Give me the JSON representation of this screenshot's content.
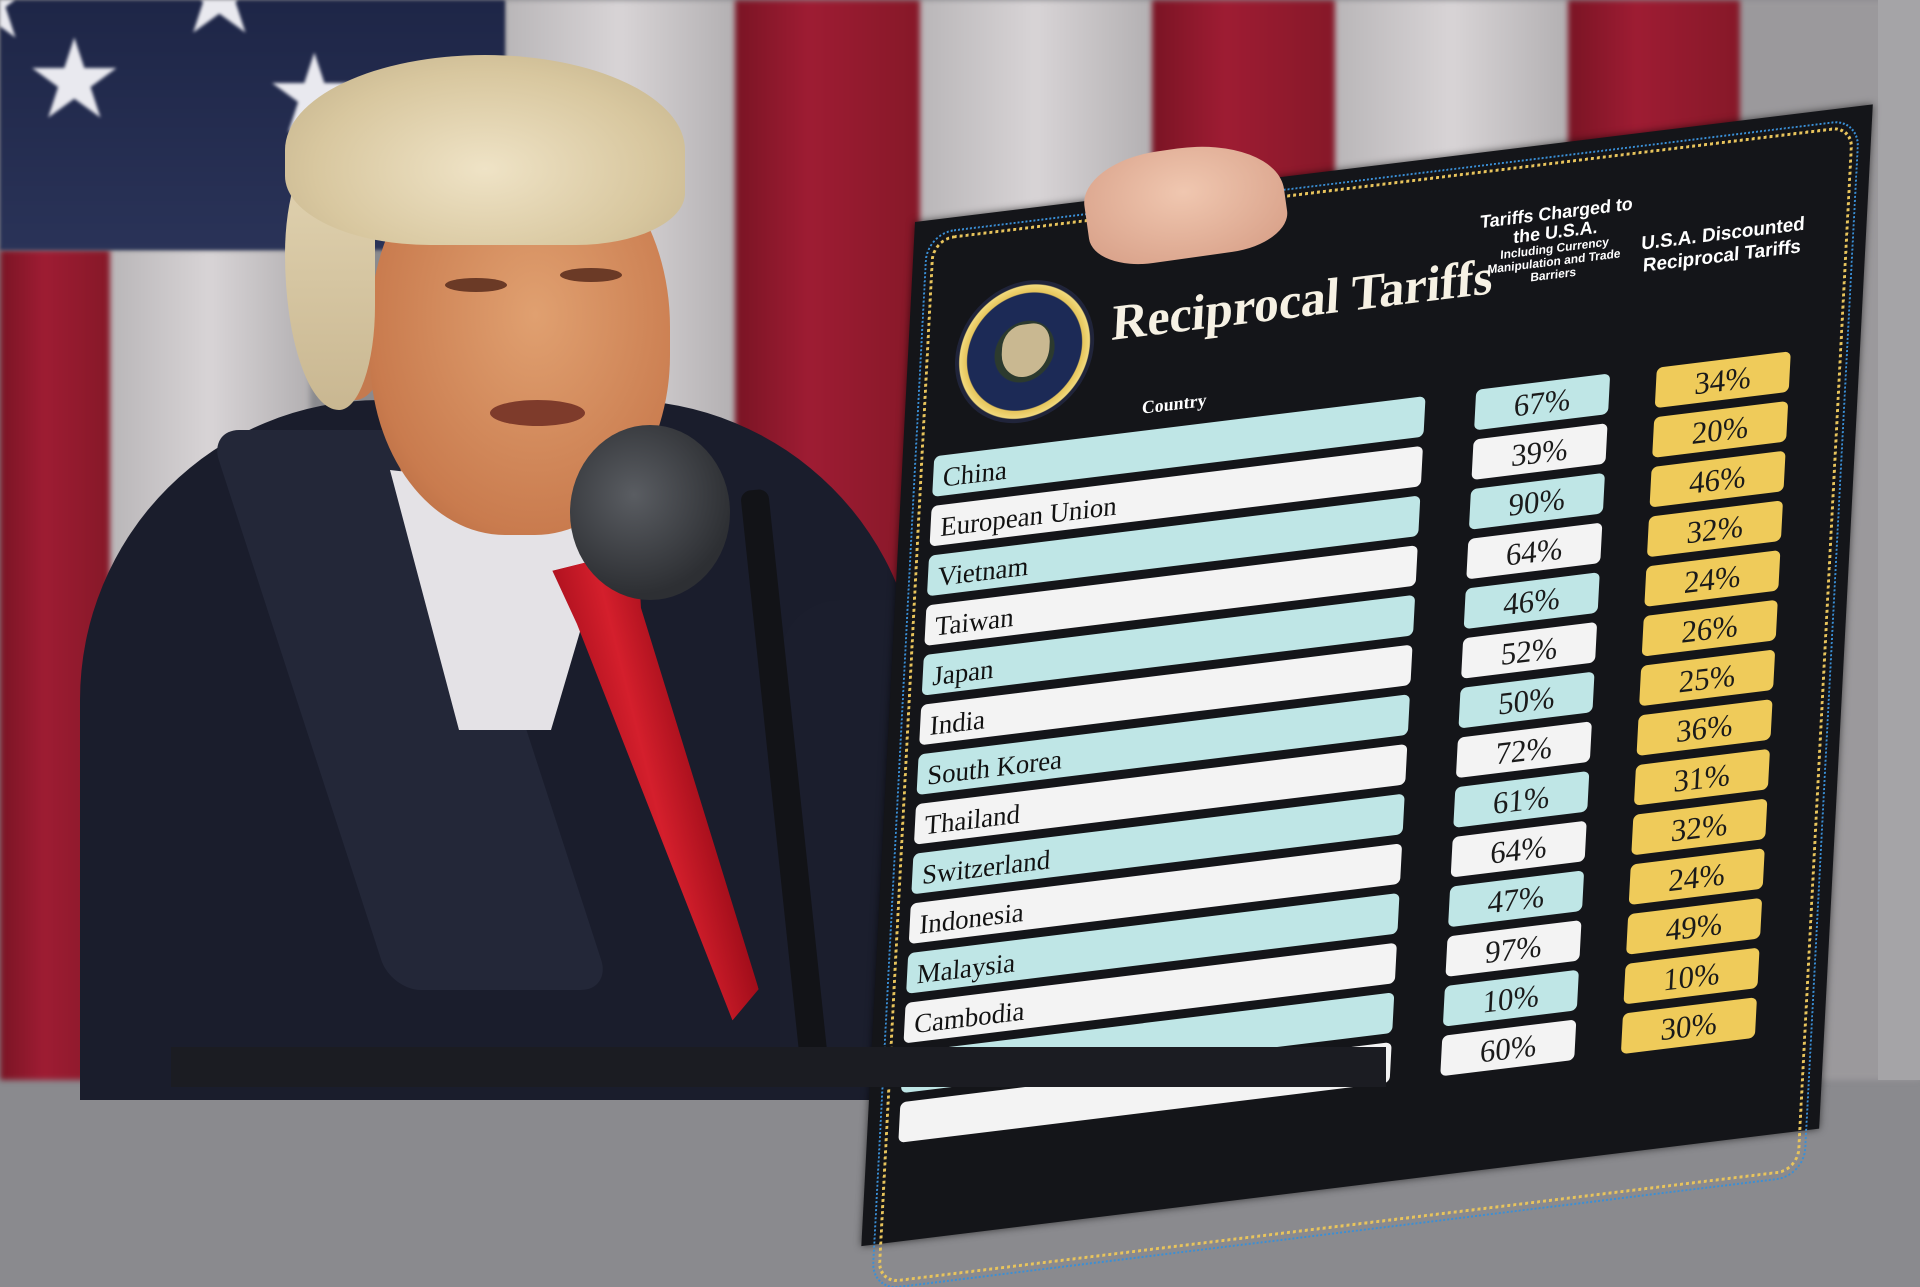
{
  "board": {
    "title": "Reciprocal Tariffs",
    "seal_text": "SEAL OF THE PRESIDENT OF THE UNITED STATES",
    "col_charged": "Tariffs Charged to the U.S.A.",
    "col_charged_sub": "Including Currency Manipulation and Trade Barriers",
    "col_reciprocal": "U.S.A. Discounted Reciprocal Tariffs",
    "col_country": "Country",
    "colors": {
      "teal": "#bfe6e6",
      "white": "#f3f3f3",
      "gold": "#efcb5a",
      "board": "#141519"
    },
    "rows": [
      {
        "country": "China",
        "charged": "67%",
        "reciprocal": "34%"
      },
      {
        "country": "European Union",
        "charged": "39%",
        "reciprocal": "20%"
      },
      {
        "country": "Vietnam",
        "charged": "90%",
        "reciprocal": "46%"
      },
      {
        "country": "Taiwan",
        "charged": "64%",
        "reciprocal": "32%"
      },
      {
        "country": "Japan",
        "charged": "46%",
        "reciprocal": "24%"
      },
      {
        "country": "India",
        "charged": "52%",
        "reciprocal": "26%"
      },
      {
        "country": "South Korea",
        "charged": "50%",
        "reciprocal": "25%"
      },
      {
        "country": "Thailand",
        "charged": "72%",
        "reciprocal": "36%"
      },
      {
        "country": "Switzerland",
        "charged": "61%",
        "reciprocal": "31%"
      },
      {
        "country": "Indonesia",
        "charged": "64%",
        "reciprocal": "32%"
      },
      {
        "country": "Malaysia",
        "charged": "47%",
        "reciprocal": "24%"
      },
      {
        "country": "Cambodia",
        "charged": "97%",
        "reciprocal": "49%"
      },
      {
        "charged": "10%",
        "reciprocal": "10%"
      },
      {
        "charged": "60%",
        "reciprocal": "30%"
      }
    ]
  }
}
